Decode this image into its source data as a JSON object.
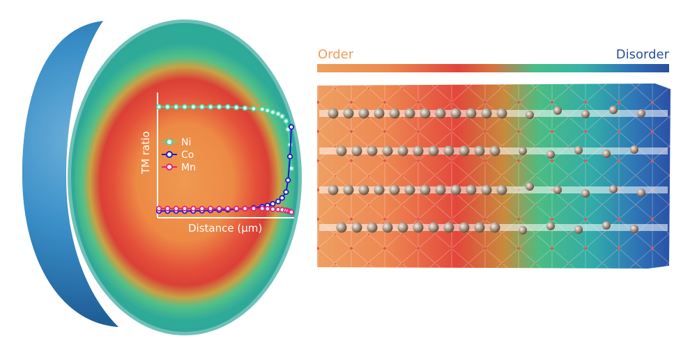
{
  "colors": {
    "order": "#ef9b58",
    "disorder": "#2a4ea3",
    "ni": "#4ad6a0",
    "co": "#1a1acc",
    "mn": "#e91e78"
  },
  "gradient_bar": {
    "start_label": "Order",
    "end_label": "Disorder"
  },
  "plot": {
    "ylabel": "TM ratio",
    "xlabel": "Distance (μm)",
    "legend": [
      {
        "name": "Ni",
        "color": "#4ad6a0"
      },
      {
        "name": "Co",
        "color": "#1a1acc"
      },
      {
        "name": "Mn",
        "color": "#e91e78"
      }
    ]
  },
  "chart_data": {
    "type": "line",
    "xlabel": "Distance (μm)",
    "ylabel": "TM ratio",
    "x": [
      0,
      0.065,
      0.13,
      0.195,
      0.26,
      0.325,
      0.39,
      0.455,
      0.52,
      0.585,
      0.65,
      0.715,
      0.78,
      0.82,
      0.86,
      0.9,
      0.93,
      0.96,
      0.975,
      0.99,
      1.0
    ],
    "series": [
      {
        "name": "Ni",
        "values": [
          0.92,
          0.92,
          0.92,
          0.92,
          0.92,
          0.92,
          0.92,
          0.92,
          0.92,
          0.915,
          0.91,
          0.905,
          0.9,
          0.89,
          0.875,
          0.86,
          0.84,
          0.8,
          0.73,
          0.6,
          0.4
        ]
      },
      {
        "name": "Co",
        "values": [
          0.04,
          0.04,
          0.04,
          0.04,
          0.04,
          0.042,
          0.045,
          0.048,
          0.05,
          0.055,
          0.06,
          0.066,
          0.075,
          0.085,
          0.1,
          0.12,
          0.15,
          0.2,
          0.3,
          0.5,
          0.75
        ]
      },
      {
        "name": "Mn",
        "values": [
          0.06,
          0.06,
          0.06,
          0.06,
          0.06,
          0.06,
          0.06,
          0.06,
          0.06,
          0.06,
          0.06,
          0.06,
          0.06,
          0.058,
          0.055,
          0.052,
          0.05,
          0.045,
          0.04,
          0.035,
          0.03
        ]
      }
    ]
  }
}
